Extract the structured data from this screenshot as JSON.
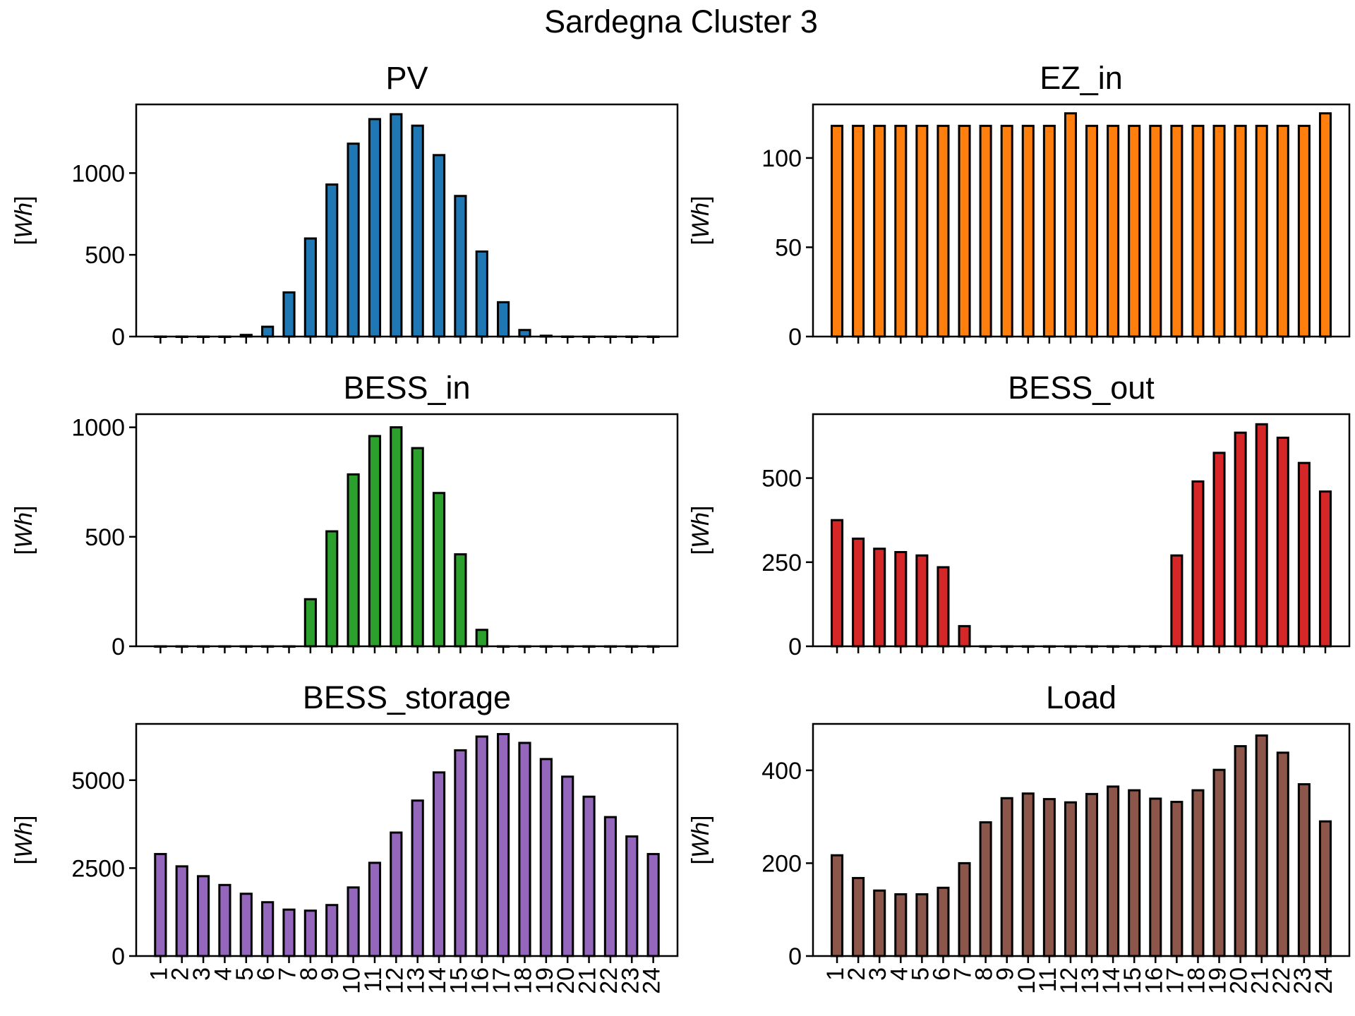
{
  "figure": {
    "suptitle": "Sardegna Cluster 3"
  },
  "chart_data": [
    {
      "type": "bar",
      "title": "PV",
      "ylabel_prefix": "[",
      "ylabel_unit": "Wh",
      "ylabel_suffix": "]",
      "color": "#1f77b4",
      "ylim": [
        0,
        1420
      ],
      "yticks": [
        0,
        500,
        1000
      ],
      "categories": [
        "1",
        "2",
        "3",
        "4",
        "5",
        "6",
        "7",
        "8",
        "9",
        "10",
        "11",
        "12",
        "13",
        "14",
        "15",
        "16",
        "17",
        "18",
        "19",
        "20",
        "21",
        "22",
        "23",
        "24"
      ],
      "values": [
        0,
        0,
        0,
        0,
        10,
        60,
        270,
        600,
        930,
        1180,
        1330,
        1360,
        1290,
        1110,
        860,
        520,
        210,
        40,
        5,
        0,
        0,
        0,
        0,
        0
      ],
      "show_xticklabels": false
    },
    {
      "type": "bar",
      "title": "EZ_in",
      "ylabel_prefix": "[",
      "ylabel_unit": "Wh",
      "ylabel_suffix": "]",
      "color": "#ff7f0e",
      "ylim": [
        0,
        130
      ],
      "yticks": [
        0,
        50,
        100
      ],
      "categories": [
        "1",
        "2",
        "3",
        "4",
        "5",
        "6",
        "7",
        "8",
        "9",
        "10",
        "11",
        "12",
        "13",
        "14",
        "15",
        "16",
        "17",
        "18",
        "19",
        "20",
        "21",
        "22",
        "23",
        "24"
      ],
      "values": [
        118,
        118,
        118,
        118,
        118,
        118,
        118,
        118,
        118,
        118,
        118,
        125,
        118,
        118,
        118,
        118,
        118,
        118,
        118,
        118,
        118,
        118,
        118,
        125
      ],
      "show_xticklabels": false
    },
    {
      "type": "bar",
      "title": "BESS_in",
      "ylabel_prefix": "[",
      "ylabel_unit": "Wh",
      "ylabel_suffix": "]",
      "color": "#2ca02c",
      "ylim": [
        0,
        1060
      ],
      "yticks": [
        0,
        500,
        1000
      ],
      "categories": [
        "1",
        "2",
        "3",
        "4",
        "5",
        "6",
        "7",
        "8",
        "9",
        "10",
        "11",
        "12",
        "13",
        "14",
        "15",
        "16",
        "17",
        "18",
        "19",
        "20",
        "21",
        "22",
        "23",
        "24"
      ],
      "values": [
        0,
        0,
        0,
        0,
        0,
        0,
        0,
        215,
        525,
        785,
        960,
        1000,
        905,
        700,
        420,
        75,
        0,
        0,
        0,
        0,
        0,
        0,
        0,
        0
      ],
      "show_xticklabels": false
    },
    {
      "type": "bar",
      "title": "BESS_out",
      "ylabel_prefix": "[",
      "ylabel_unit": "Wh",
      "ylabel_suffix": "]",
      "color": "#d62728",
      "ylim": [
        0,
        690
      ],
      "yticks": [
        0,
        250,
        500
      ],
      "categories": [
        "1",
        "2",
        "3",
        "4",
        "5",
        "6",
        "7",
        "8",
        "9",
        "10",
        "11",
        "12",
        "13",
        "14",
        "15",
        "16",
        "17",
        "18",
        "19",
        "20",
        "21",
        "22",
        "23",
        "24"
      ],
      "values": [
        375,
        320,
        290,
        280,
        270,
        235,
        60,
        0,
        0,
        0,
        0,
        0,
        0,
        0,
        0,
        0,
        270,
        490,
        575,
        635,
        660,
        620,
        545,
        460
      ],
      "show_xticklabels": false
    },
    {
      "type": "bar",
      "title": "BESS_storage",
      "ylabel_prefix": "[",
      "ylabel_unit": "Wh",
      "ylabel_suffix": "]",
      "color": "#9467bd",
      "ylim": [
        0,
        6600
      ],
      "yticks": [
        0,
        2500,
        5000
      ],
      "categories": [
        "1",
        "2",
        "3",
        "4",
        "5",
        "6",
        "7",
        "8",
        "9",
        "10",
        "11",
        "12",
        "13",
        "14",
        "15",
        "16",
        "17",
        "18",
        "19",
        "20",
        "21",
        "22",
        "23",
        "24"
      ],
      "values": [
        2900,
        2550,
        2270,
        2020,
        1770,
        1530,
        1320,
        1290,
        1450,
        1950,
        2650,
        3510,
        4420,
        5220,
        5850,
        6240,
        6310,
        6060,
        5600,
        5100,
        4530,
        3950,
        3400,
        2900
      ],
      "show_xticklabels": true
    },
    {
      "type": "bar",
      "title": "Load",
      "ylabel_prefix": "[",
      "ylabel_unit": "Wh",
      "ylabel_suffix": "]",
      "color": "#8c564b",
      "ylim": [
        0,
        500
      ],
      "yticks": [
        0,
        200,
        400
      ],
      "categories": [
        "1",
        "2",
        "3",
        "4",
        "5",
        "6",
        "7",
        "8",
        "9",
        "10",
        "11",
        "12",
        "13",
        "14",
        "15",
        "16",
        "17",
        "18",
        "19",
        "20",
        "21",
        "22",
        "23",
        "24"
      ],
      "values": [
        217,
        168,
        141,
        133,
        133,
        147,
        200,
        288,
        340,
        350,
        338,
        331,
        349,
        365,
        357,
        339,
        332,
        357,
        401,
        452,
        475,
        438,
        370,
        290
      ],
      "show_xticklabels": true
    }
  ]
}
